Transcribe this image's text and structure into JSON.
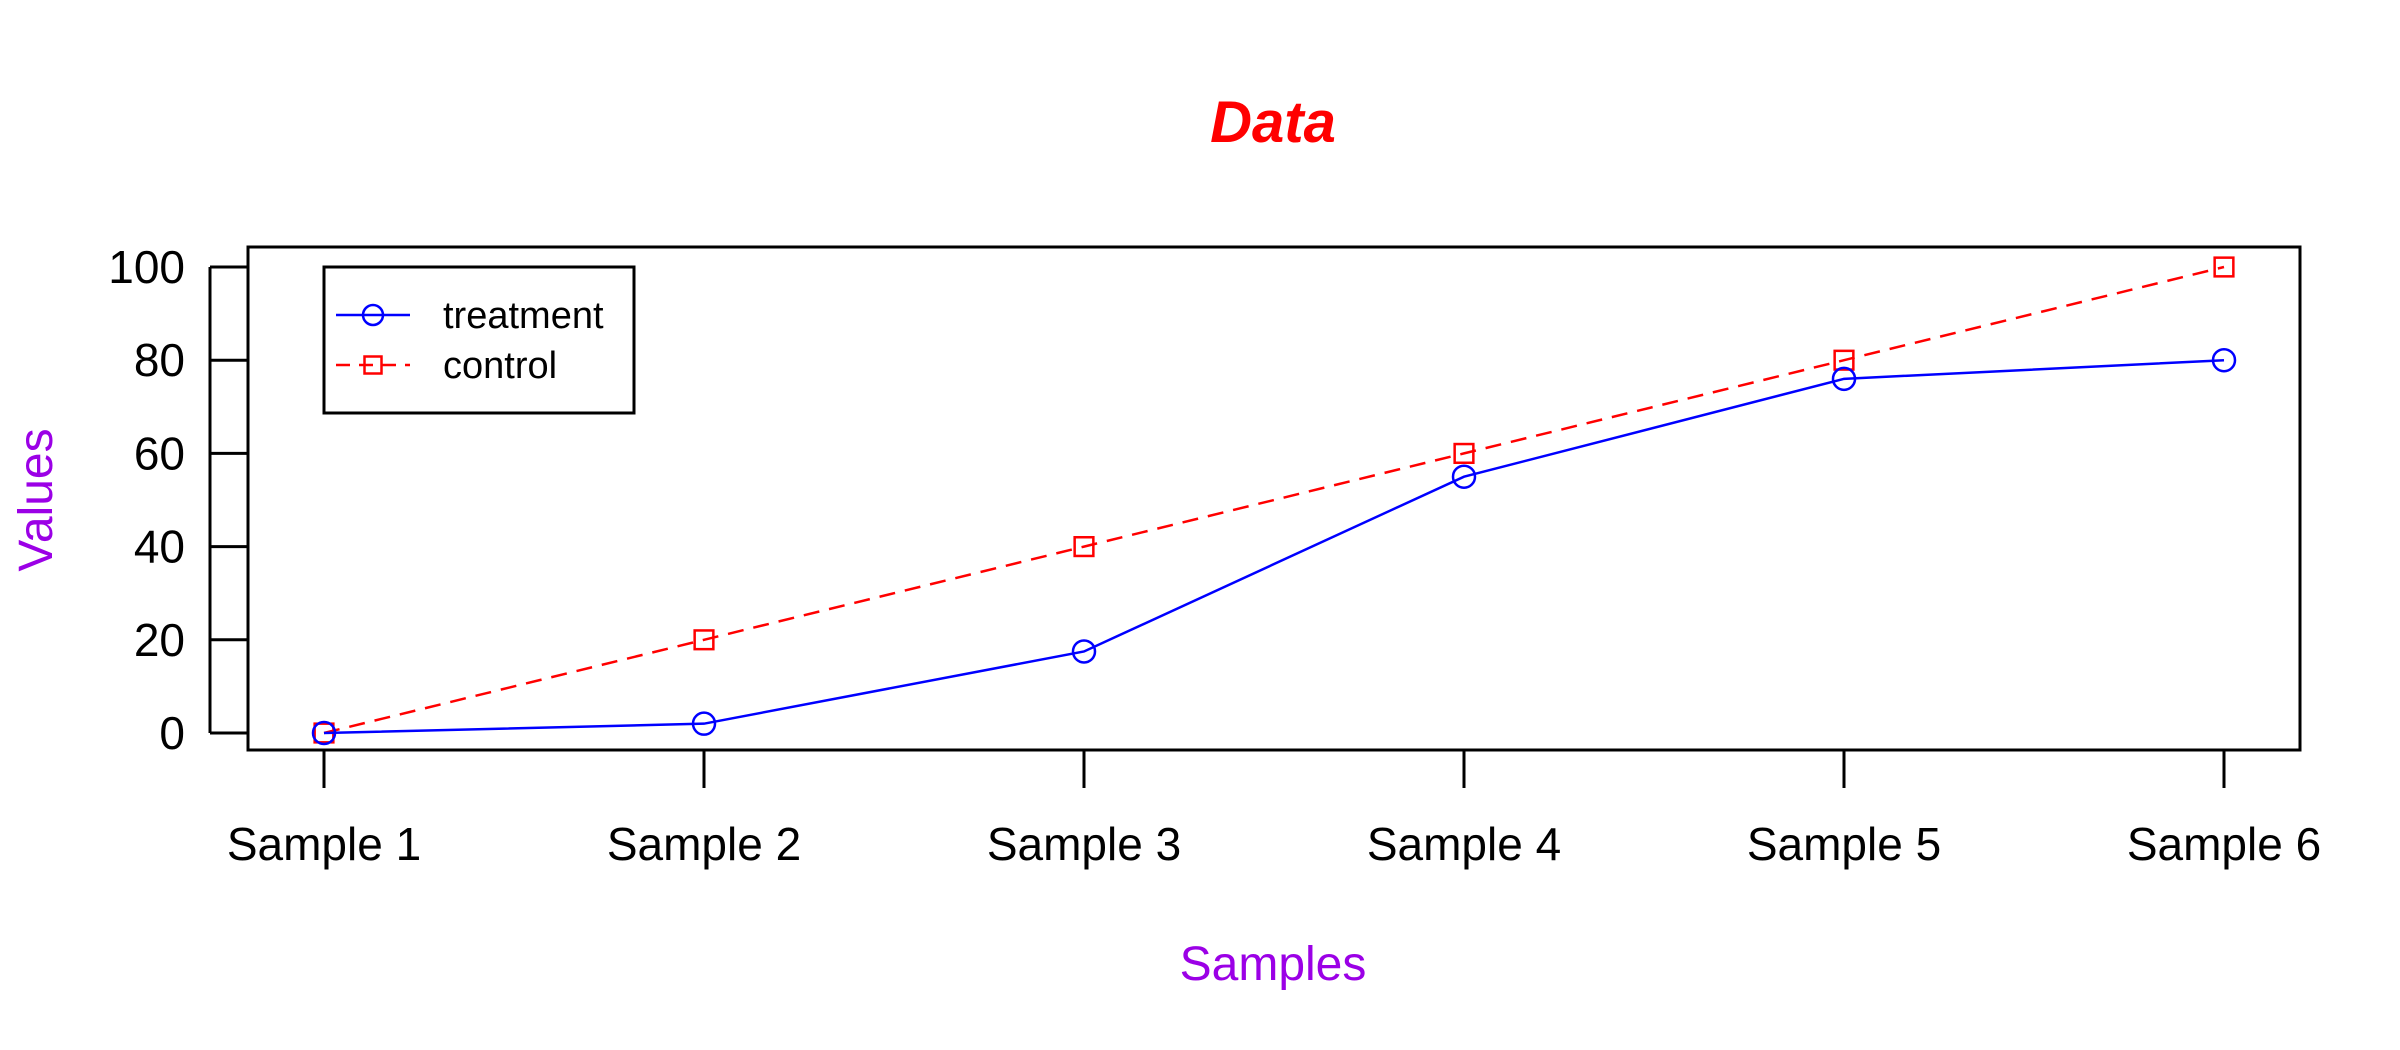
{
  "chart_data": {
    "type": "line",
    "title": "Data",
    "xlabel": "Samples",
    "ylabel": "Values",
    "categories": [
      "Sample 1",
      "Sample 2",
      "Sample 3",
      "Sample 4",
      "Sample 5",
      "Sample 6"
    ],
    "ylim": [
      0,
      100
    ],
    "yticks": [
      0,
      20,
      40,
      60,
      80,
      100
    ],
    "grid": false,
    "legend_position": "top-left",
    "series": [
      {
        "name": "treatment",
        "values": [
          0,
          2,
          17.5,
          55,
          76,
          80
        ],
        "color": "#0000ff",
        "marker": "circle",
        "line_style": "solid"
      },
      {
        "name": "control",
        "values": [
          0,
          20,
          40,
          60,
          80,
          100
        ],
        "color": "#ff0000",
        "marker": "square",
        "line_style": "dashed"
      }
    ],
    "title_color": "#ff0000",
    "label_color": "#9b00e6"
  }
}
